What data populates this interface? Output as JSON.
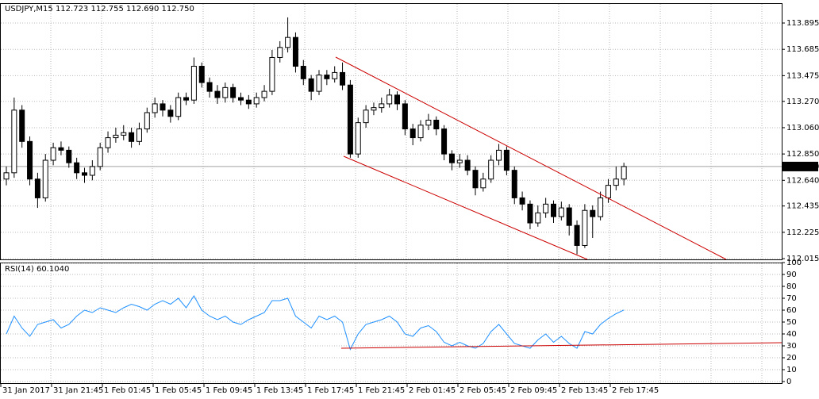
{
  "chart_data": [
    {
      "type": "candlestick",
      "title": "USDJPY,M15  112.723 112.755 112.690 112.750",
      "open": [
        112.65,
        112.7,
        113.2,
        112.95,
        112.65,
        112.5,
        112.8,
        112.9,
        112.88,
        112.78,
        112.7,
        112.68,
        112.75,
        112.9,
        112.98,
        113.0,
        113.02,
        112.95,
        113.05,
        113.18,
        113.25,
        113.2,
        113.15,
        113.3,
        113.28,
        113.55,
        113.42,
        113.35,
        113.3,
        113.38,
        113.3,
        113.28,
        113.25,
        113.3,
        113.35,
        113.62,
        113.7,
        113.78,
        113.55,
        113.45,
        113.35,
        113.48,
        113.45,
        113.5,
        113.4,
        112.85,
        113.1,
        113.2,
        113.22,
        113.25,
        113.32,
        113.25,
        113.05,
        112.98,
        113.08,
        113.12,
        113.05,
        112.85,
        112.78,
        112.8,
        112.72,
        112.58,
        112.65,
        112.8,
        112.88,
        112.72,
        112.5,
        112.45,
        112.3,
        112.38,
        112.45,
        112.35,
        112.42,
        112.28,
        112.12,
        112.4,
        112.35,
        112.5,
        112.6,
        112.65
      ],
      "high": [
        112.75,
        113.3,
        113.24,
        112.99,
        112.7,
        112.85,
        112.94,
        112.95,
        112.91,
        112.82,
        112.74,
        112.8,
        112.94,
        113.03,
        113.06,
        113.08,
        113.06,
        113.1,
        113.22,
        113.3,
        113.28,
        113.24,
        113.34,
        113.34,
        113.62,
        113.58,
        113.46,
        113.4,
        113.42,
        113.41,
        113.34,
        113.32,
        113.34,
        113.4,
        113.68,
        113.75,
        113.94,
        113.82,
        113.6,
        113.48,
        113.52,
        113.52,
        113.55,
        113.58,
        113.44,
        113.14,
        113.24,
        113.26,
        113.3,
        113.37,
        113.35,
        113.28,
        113.09,
        113.12,
        113.17,
        113.15,
        113.08,
        112.88,
        112.85,
        112.84,
        112.75,
        112.7,
        112.84,
        112.93,
        112.91,
        112.75,
        112.55,
        112.48,
        112.44,
        112.5,
        112.48,
        112.47,
        112.45,
        112.32,
        112.45,
        112.44,
        112.55,
        112.65,
        112.75,
        112.78
      ],
      "low": [
        112.6,
        112.66,
        112.9,
        112.6,
        112.42,
        112.47,
        112.76,
        112.84,
        112.74,
        112.65,
        112.62,
        112.64,
        112.72,
        112.86,
        112.94,
        112.96,
        112.9,
        112.92,
        113.02,
        113.14,
        113.15,
        113.1,
        113.12,
        113.24,
        113.25,
        113.38,
        113.3,
        113.25,
        113.26,
        113.26,
        113.24,
        113.21,
        113.22,
        113.27,
        113.32,
        113.58,
        113.66,
        113.5,
        113.4,
        113.28,
        113.32,
        113.4,
        113.42,
        113.36,
        112.82,
        112.82,
        113.06,
        113.16,
        113.18,
        113.22,
        113.2,
        113.0,
        112.92,
        112.95,
        113.04,
        113.0,
        112.8,
        112.72,
        112.74,
        112.68,
        112.52,
        112.55,
        112.62,
        112.76,
        112.68,
        112.45,
        112.4,
        112.25,
        112.27,
        112.34,
        112.3,
        112.32,
        112.2,
        112.05,
        112.1,
        112.18,
        112.32,
        112.46,
        112.56,
        112.6
      ],
      "close": [
        112.7,
        113.2,
        112.95,
        112.65,
        112.5,
        112.8,
        112.9,
        112.88,
        112.78,
        112.7,
        112.68,
        112.75,
        112.9,
        112.98,
        113.0,
        113.02,
        112.95,
        113.05,
        113.18,
        113.25,
        113.2,
        113.15,
        113.3,
        113.28,
        113.55,
        113.42,
        113.35,
        113.3,
        113.38,
        113.3,
        113.28,
        113.25,
        113.3,
        113.35,
        113.62,
        113.7,
        113.78,
        113.55,
        113.45,
        113.35,
        113.48,
        113.45,
        113.5,
        113.4,
        112.85,
        113.1,
        113.2,
        113.22,
        113.25,
        113.32,
        113.25,
        113.05,
        112.98,
        113.08,
        113.12,
        113.05,
        112.85,
        112.78,
        112.8,
        112.72,
        112.58,
        112.65,
        112.8,
        112.88,
        112.72,
        112.5,
        112.45,
        112.3,
        112.38,
        112.45,
        112.35,
        112.42,
        112.28,
        112.12,
        112.4,
        112.35,
        112.5,
        112.6,
        112.65,
        112.75
      ],
      "ylim": [
        112.009,
        114.047
      ],
      "yticks": [
        113.895,
        113.685,
        113.475,
        {
          "value": 113.27,
          "label": "113.270"
        },
        {
          "value": 113.06,
          "label": "113.060"
        },
        {
          "value": 112.85,
          "label": "112.850"
        },
        {
          "value": 112.64,
          "label": "112.640"
        },
        112.435,
        112.225,
        112.015
      ],
      "last_price": {
        "value": 112.75,
        "label": "112.750"
      },
      "x_labels": [
        "31 Jan 2017",
        "31 Jan 21:45",
        "1 Feb 01:45",
        "1 Feb 05:45",
        "1 Feb 09:45",
        "1 Feb 13:45",
        "1 Feb 17:45",
        "1 Feb 21:45",
        "2 Feb 01:45",
        "2 Feb 05:45",
        "2 Feb 09:45",
        "2 Feb 13:45",
        "2 Feb 17:45"
      ],
      "grid": true
    },
    {
      "type": "line",
      "title": "RSI(14) 60.1040",
      "color": "#1e90ff",
      "values": [
        40,
        55,
        45,
        38,
        48,
        50,
        52,
        45,
        48,
        55,
        60,
        58,
        62,
        60,
        58,
        62,
        65,
        63,
        60,
        65,
        68,
        65,
        70,
        62,
        72,
        60,
        55,
        52,
        55,
        50,
        48,
        52,
        55,
        58,
        68,
        68,
        70,
        55,
        50,
        45,
        55,
        52,
        55,
        50,
        27,
        40,
        48,
        50,
        52,
        55,
        50,
        40,
        38,
        45,
        47,
        42,
        33,
        30,
        33,
        30,
        28,
        32,
        42,
        48,
        40,
        32,
        30,
        28,
        35,
        40,
        33,
        38,
        32,
        28,
        42,
        40,
        48,
        53,
        57,
        60.104
      ],
      "ylim": [
        0,
        100
      ],
      "yticks": [
        100,
        90,
        80,
        70,
        60,
        50,
        40,
        30,
        20,
        10,
        0
      ],
      "grid": true
    }
  ]
}
